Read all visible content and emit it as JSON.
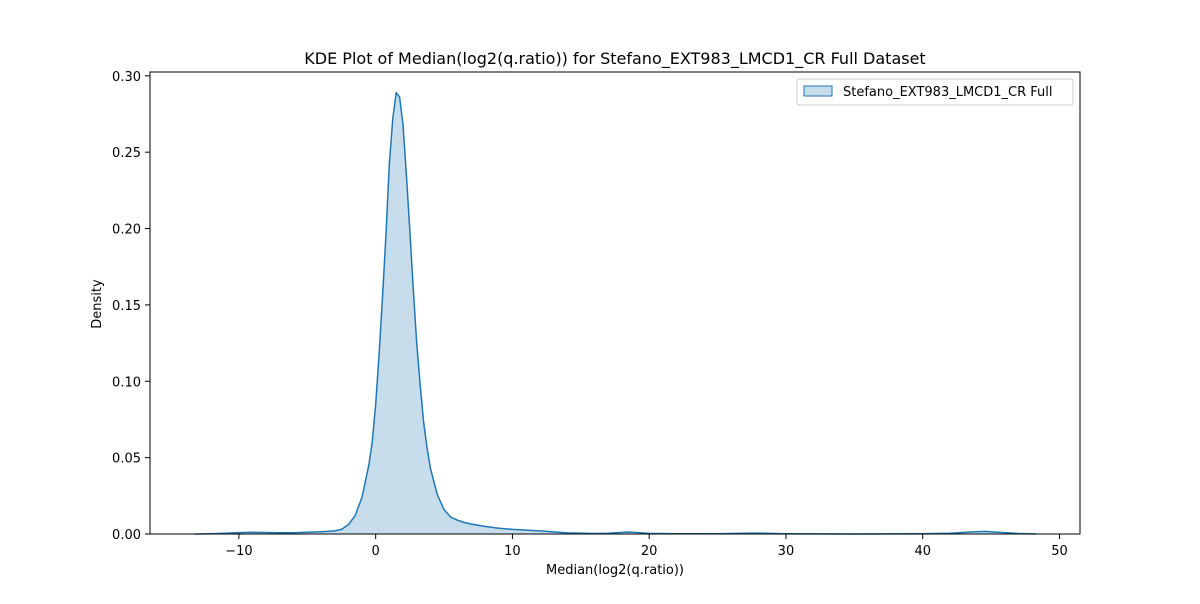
{
  "chart_data": {
    "type": "area",
    "title": "KDE Plot of Median(log2(q.ratio)) for Stefano_EXT983_LMCD1_CR Full Dataset",
    "xlabel": "Median(log2(q.ratio))",
    "ylabel": "Density",
    "xlim": [
      -16.5,
      51.5
    ],
    "ylim": [
      0,
      0.3025
    ],
    "xticks": [
      -10,
      0,
      10,
      20,
      30,
      40,
      50
    ],
    "xtick_labels": [
      "−10",
      "0",
      "10",
      "20",
      "30",
      "40",
      "50"
    ],
    "yticks": [
      0,
      0.05,
      0.1,
      0.15,
      0.2,
      0.25,
      0.3
    ],
    "ytick_labels": [
      "0.00",
      "0.05",
      "0.10",
      "0.15",
      "0.20",
      "0.25",
      "0.30"
    ],
    "grid": false,
    "legend_position": "top-right",
    "colors": {
      "line": "#1f77b4",
      "fill": "#1f77b4",
      "fill_opacity": 0.25
    },
    "series": [
      {
        "name": "Stefano_EXT983_LMCD1_CR Full",
        "x": [
          -13.2,
          -12,
          -11,
          -10,
          -9,
          -8,
          -7,
          -6,
          -5,
          -4,
          -3,
          -2.5,
          -2,
          -1.5,
          -1,
          -0.5,
          -0.25,
          0,
          0.25,
          0.5,
          0.75,
          1,
          1.25,
          1.5,
          1.75,
          2,
          2.25,
          2.5,
          2.75,
          3,
          3.25,
          3.5,
          3.75,
          4,
          4.5,
          5,
          5.5,
          6,
          6.5,
          7,
          8,
          9,
          10,
          12,
          14,
          16,
          17,
          18.5,
          20,
          22,
          25,
          27.5,
          30,
          35,
          40,
          42,
          43.5,
          44.5,
          45.5,
          47,
          48.3
        ],
        "y": [
          0,
          0.0002,
          0.0005,
          0.0009,
          0.0011,
          0.001,
          0.0008,
          0.0008,
          0.0011,
          0.0015,
          0.002,
          0.003,
          0.006,
          0.012,
          0.024,
          0.045,
          0.06,
          0.085,
          0.118,
          0.155,
          0.195,
          0.242,
          0.272,
          0.289,
          0.286,
          0.268,
          0.235,
          0.198,
          0.16,
          0.125,
          0.098,
          0.074,
          0.057,
          0.043,
          0.026,
          0.016,
          0.011,
          0.009,
          0.0075,
          0.0065,
          0.005,
          0.0038,
          0.003,
          0.002,
          0.0007,
          0.0003,
          0.0005,
          0.0013,
          0.0004,
          0.0001,
          0.0001,
          0.0006,
          0.0002,
          0,
          0.0001,
          0.0005,
          0.0013,
          0.0017,
          0.0012,
          0.0003,
          0
        ]
      }
    ]
  }
}
